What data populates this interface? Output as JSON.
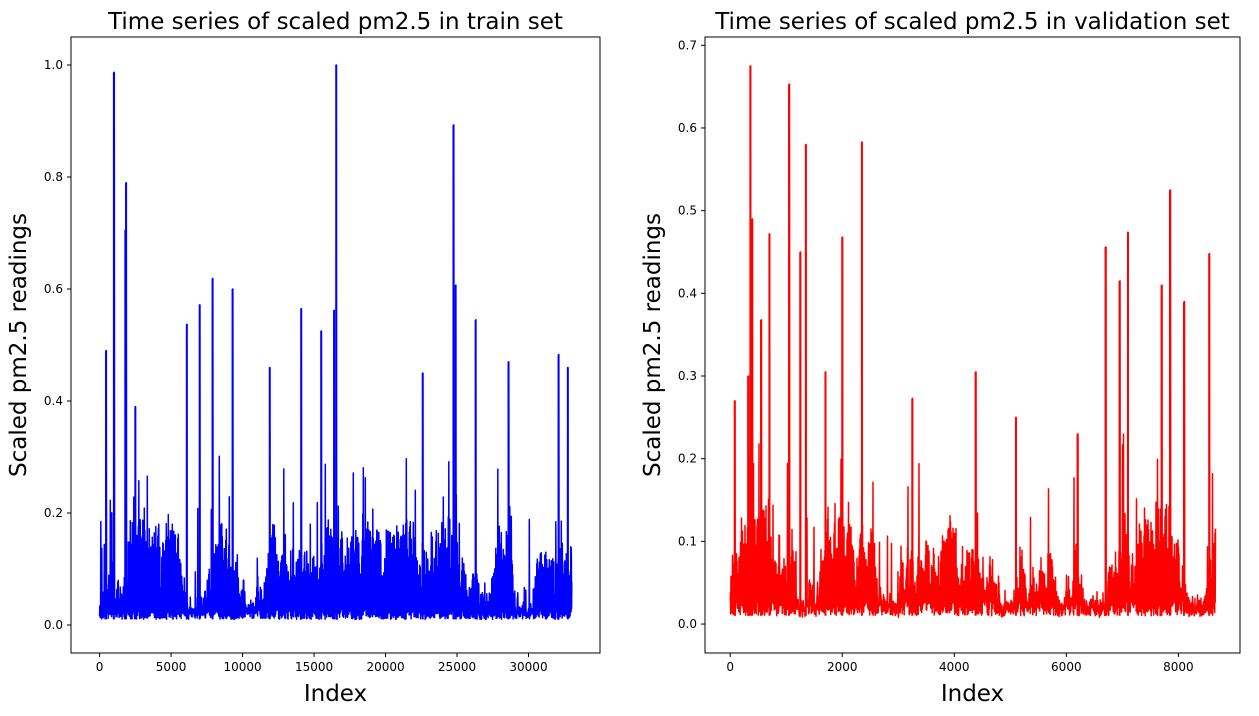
{
  "chart_data": [
    {
      "type": "line",
      "title": "Time series of scaled pm2.5 in train set",
      "xlabel": "Index",
      "ylabel": "Scaled pm2.5 readings",
      "xlim": [
        -2000,
        35000
      ],
      "ylim": [
        -0.05,
        1.05
      ],
      "xticks": [
        0,
        5000,
        10000,
        15000,
        20000,
        25000,
        30000
      ],
      "xtick_labels": [
        "0",
        "5000",
        "10000",
        "15000",
        "20000",
        "25000",
        "30000"
      ],
      "yticks": [
        0.0,
        0.2,
        0.4,
        0.6,
        0.8,
        1.0
      ],
      "ytick_labels": [
        "0.0",
        "0.2",
        "0.4",
        "0.6",
        "0.8",
        "1.0"
      ],
      "grid": false,
      "series": [
        {
          "color": "#0000ff",
          "n_points": 33000,
          "baseline_range": [
            0.0,
            0.2
          ],
          "peaks": [
            {
              "x": 450,
              "y": 0.49
            },
            {
              "x": 1000,
              "y": 0.987
            },
            {
              "x": 1850,
              "y": 0.79
            },
            {
              "x": 1800,
              "y": 0.705
            },
            {
              "x": 2500,
              "y": 0.39
            },
            {
              "x": 6100,
              "y": 0.537
            },
            {
              "x": 7000,
              "y": 0.572
            },
            {
              "x": 7900,
              "y": 0.619
            },
            {
              "x": 9300,
              "y": 0.6
            },
            {
              "x": 11900,
              "y": 0.46
            },
            {
              "x": 14100,
              "y": 0.565
            },
            {
              "x": 15500,
              "y": 0.525
            },
            {
              "x": 16400,
              "y": 0.562
            },
            {
              "x": 16550,
              "y": 1.0
            },
            {
              "x": 22600,
              "y": 0.45
            },
            {
              "x": 24750,
              "y": 0.893
            },
            {
              "x": 24900,
              "y": 0.607
            },
            {
              "x": 26300,
              "y": 0.545
            },
            {
              "x": 28600,
              "y": 0.47
            },
            {
              "x": 32100,
              "y": 0.483
            },
            {
              "x": 32750,
              "y": 0.46
            }
          ]
        }
      ]
    },
    {
      "type": "line",
      "title": "Time series of scaled pm2.5 in validation set",
      "xlabel": "Index",
      "ylabel": "Scaled pm2.5 readings",
      "xlim": [
        -450,
        9100
      ],
      "ylim": [
        -0.035,
        0.71
      ],
      "xticks": [
        0,
        2000,
        4000,
        6000,
        8000
      ],
      "xtick_labels": [
        "0",
        "2000",
        "4000",
        "6000",
        "8000"
      ],
      "yticks": [
        0.0,
        0.1,
        0.2,
        0.3,
        0.4,
        0.5,
        0.6,
        0.7
      ],
      "ytick_labels": [
        "0.0",
        "0.1",
        "0.2",
        "0.3",
        "0.4",
        "0.5",
        "0.6",
        "0.7"
      ],
      "grid": false,
      "series": [
        {
          "color": "#ff0000",
          "n_points": 8661,
          "baseline_range": [
            0.0,
            0.15
          ],
          "peaks": [
            {
              "x": 80,
              "y": 0.27
            },
            {
              "x": 320,
              "y": 0.3
            },
            {
              "x": 360,
              "y": 0.675
            },
            {
              "x": 390,
              "y": 0.49
            },
            {
              "x": 550,
              "y": 0.368
            },
            {
              "x": 700,
              "y": 0.472
            },
            {
              "x": 1050,
              "y": 0.653
            },
            {
              "x": 1250,
              "y": 0.45
            },
            {
              "x": 1350,
              "y": 0.58
            },
            {
              "x": 1700,
              "y": 0.305
            },
            {
              "x": 2000,
              "y": 0.468
            },
            {
              "x": 2350,
              "y": 0.583
            },
            {
              "x": 3250,
              "y": 0.273
            },
            {
              "x": 4380,
              "y": 0.305
            },
            {
              "x": 5100,
              "y": 0.25
            },
            {
              "x": 6200,
              "y": 0.23
            },
            {
              "x": 6700,
              "y": 0.456
            },
            {
              "x": 6950,
              "y": 0.415
            },
            {
              "x": 7100,
              "y": 0.474
            },
            {
              "x": 7700,
              "y": 0.41
            },
            {
              "x": 7850,
              "y": 0.525
            },
            {
              "x": 8100,
              "y": 0.39
            },
            {
              "x": 8550,
              "y": 0.448
            }
          ]
        }
      ]
    }
  ]
}
